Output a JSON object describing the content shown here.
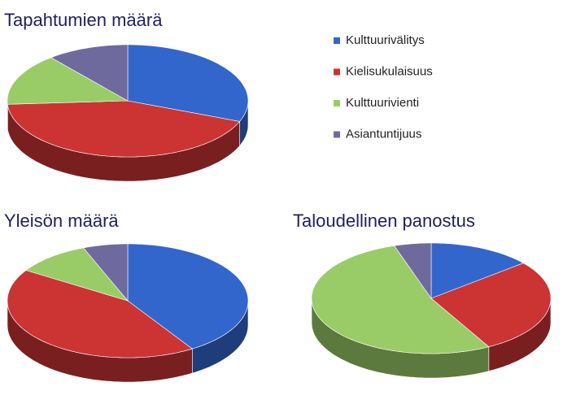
{
  "chart_data": [
    {
      "type": "pie3d",
      "title": "Tapahtumien määrä",
      "categories": [
        "Kulttuurivälitys",
        "Kielisukulaisuus",
        "Kulttuurivienti",
        "Asiantuntijuus"
      ],
      "values": [
        31,
        43,
        15,
        11
      ],
      "colors": [
        "#3366cc",
        "#cc3333",
        "#99cc66",
        "#6f6a9e"
      ]
    },
    {
      "type": "pie3d",
      "title": "Yleisön määrä",
      "categories": [
        "Kulttuurivälitys",
        "Kielisukulaisuus",
        "Kulttuurivienti",
        "Asiantuntijuus"
      ],
      "values": [
        41,
        43,
        10,
        6
      ],
      "colors": [
        "#3366cc",
        "#cc3333",
        "#99cc66",
        "#6f6a9e"
      ]
    },
    {
      "type": "pie3d",
      "title": "Taloudellinen panostus",
      "categories": [
        "Kulttuurivälitys",
        "Kielisukulaisuus",
        "Kulttuurivienti",
        "Asiantuntijuus"
      ],
      "values": [
        14,
        28,
        53,
        5
      ],
      "colors": [
        "#3366cc",
        "#cc3333",
        "#99cc66",
        "#6f6a9e"
      ]
    }
  ]
}
